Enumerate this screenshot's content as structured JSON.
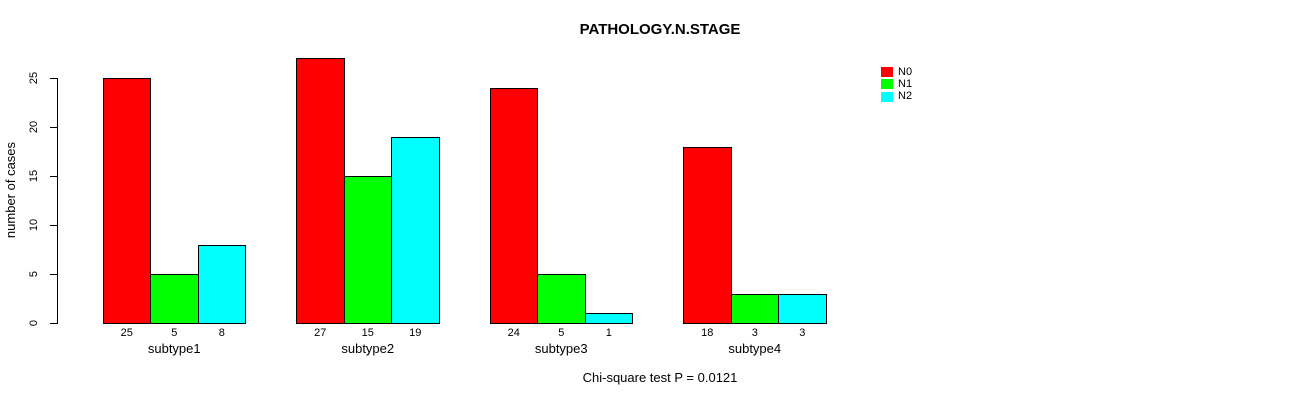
{
  "chart_data": {
    "type": "bar",
    "title": "PATHOLOGY.N.STAGE",
    "ylabel": "number of cases",
    "xlabel": "",
    "categories": [
      "subtype1",
      "subtype2",
      "subtype3",
      "subtype4"
    ],
    "series": [
      {
        "name": "N0",
        "color": "#ff0000",
        "values": [
          25,
          27,
          24,
          18
        ]
      },
      {
        "name": "N1",
        "color": "#00ff00",
        "values": [
          5,
          15,
          5,
          3
        ]
      },
      {
        "name": "N2",
        "color": "#00ffff",
        "values": [
          8,
          19,
          1,
          3
        ]
      }
    ],
    "bar_value_labels": [
      [
        "25",
        "5",
        "8"
      ],
      [
        "27",
        "15",
        "19"
      ],
      [
        "24",
        "5",
        "1"
      ],
      [
        "18",
        "3",
        "3"
      ]
    ],
    "y_ticks": [
      0,
      5,
      10,
      15,
      20,
      25
    ],
    "ylim": [
      0,
      27
    ],
    "grid": false,
    "legend_position": "right",
    "footnote": "Chi-square test P = 0.0121"
  }
}
